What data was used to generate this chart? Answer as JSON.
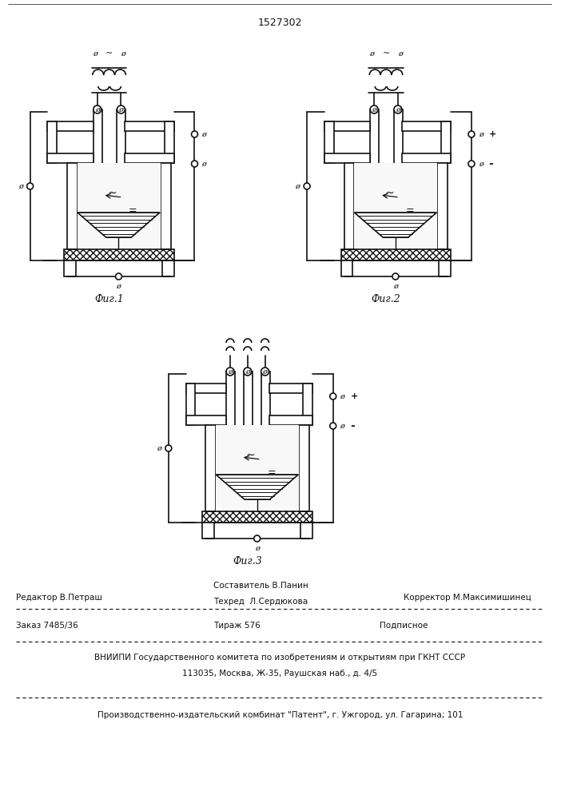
{
  "patent_number": "1527302",
  "fig1_caption": "Фиг.1",
  "fig2_caption": "Фиг.2",
  "fig3_caption": "Фиг.3",
  "editor": "Редактор В.Петраш",
  "composer1": "Составитель В.Панин",
  "composer2": "Техред  Л.Сердюкова",
  "corrector": "Корректор М.Максимишинец",
  "order": "Заказ 7485/36",
  "tirazh": "Тираж 576",
  "podpisnoe": "Подписное",
  "vniip1": "ВНИИПИ Государственного комитета по изобретениям и открытиям при ГКНТ СССР",
  "vniip2": "113035, Москва, Ж-35, Раушская наб., д. 4/5",
  "production": "Производственно-издательский комбинат \"Патент\", г. Ужгород, ул. Гагарина; 101",
  "bg_color": "#ffffff",
  "line_color": "#111111"
}
